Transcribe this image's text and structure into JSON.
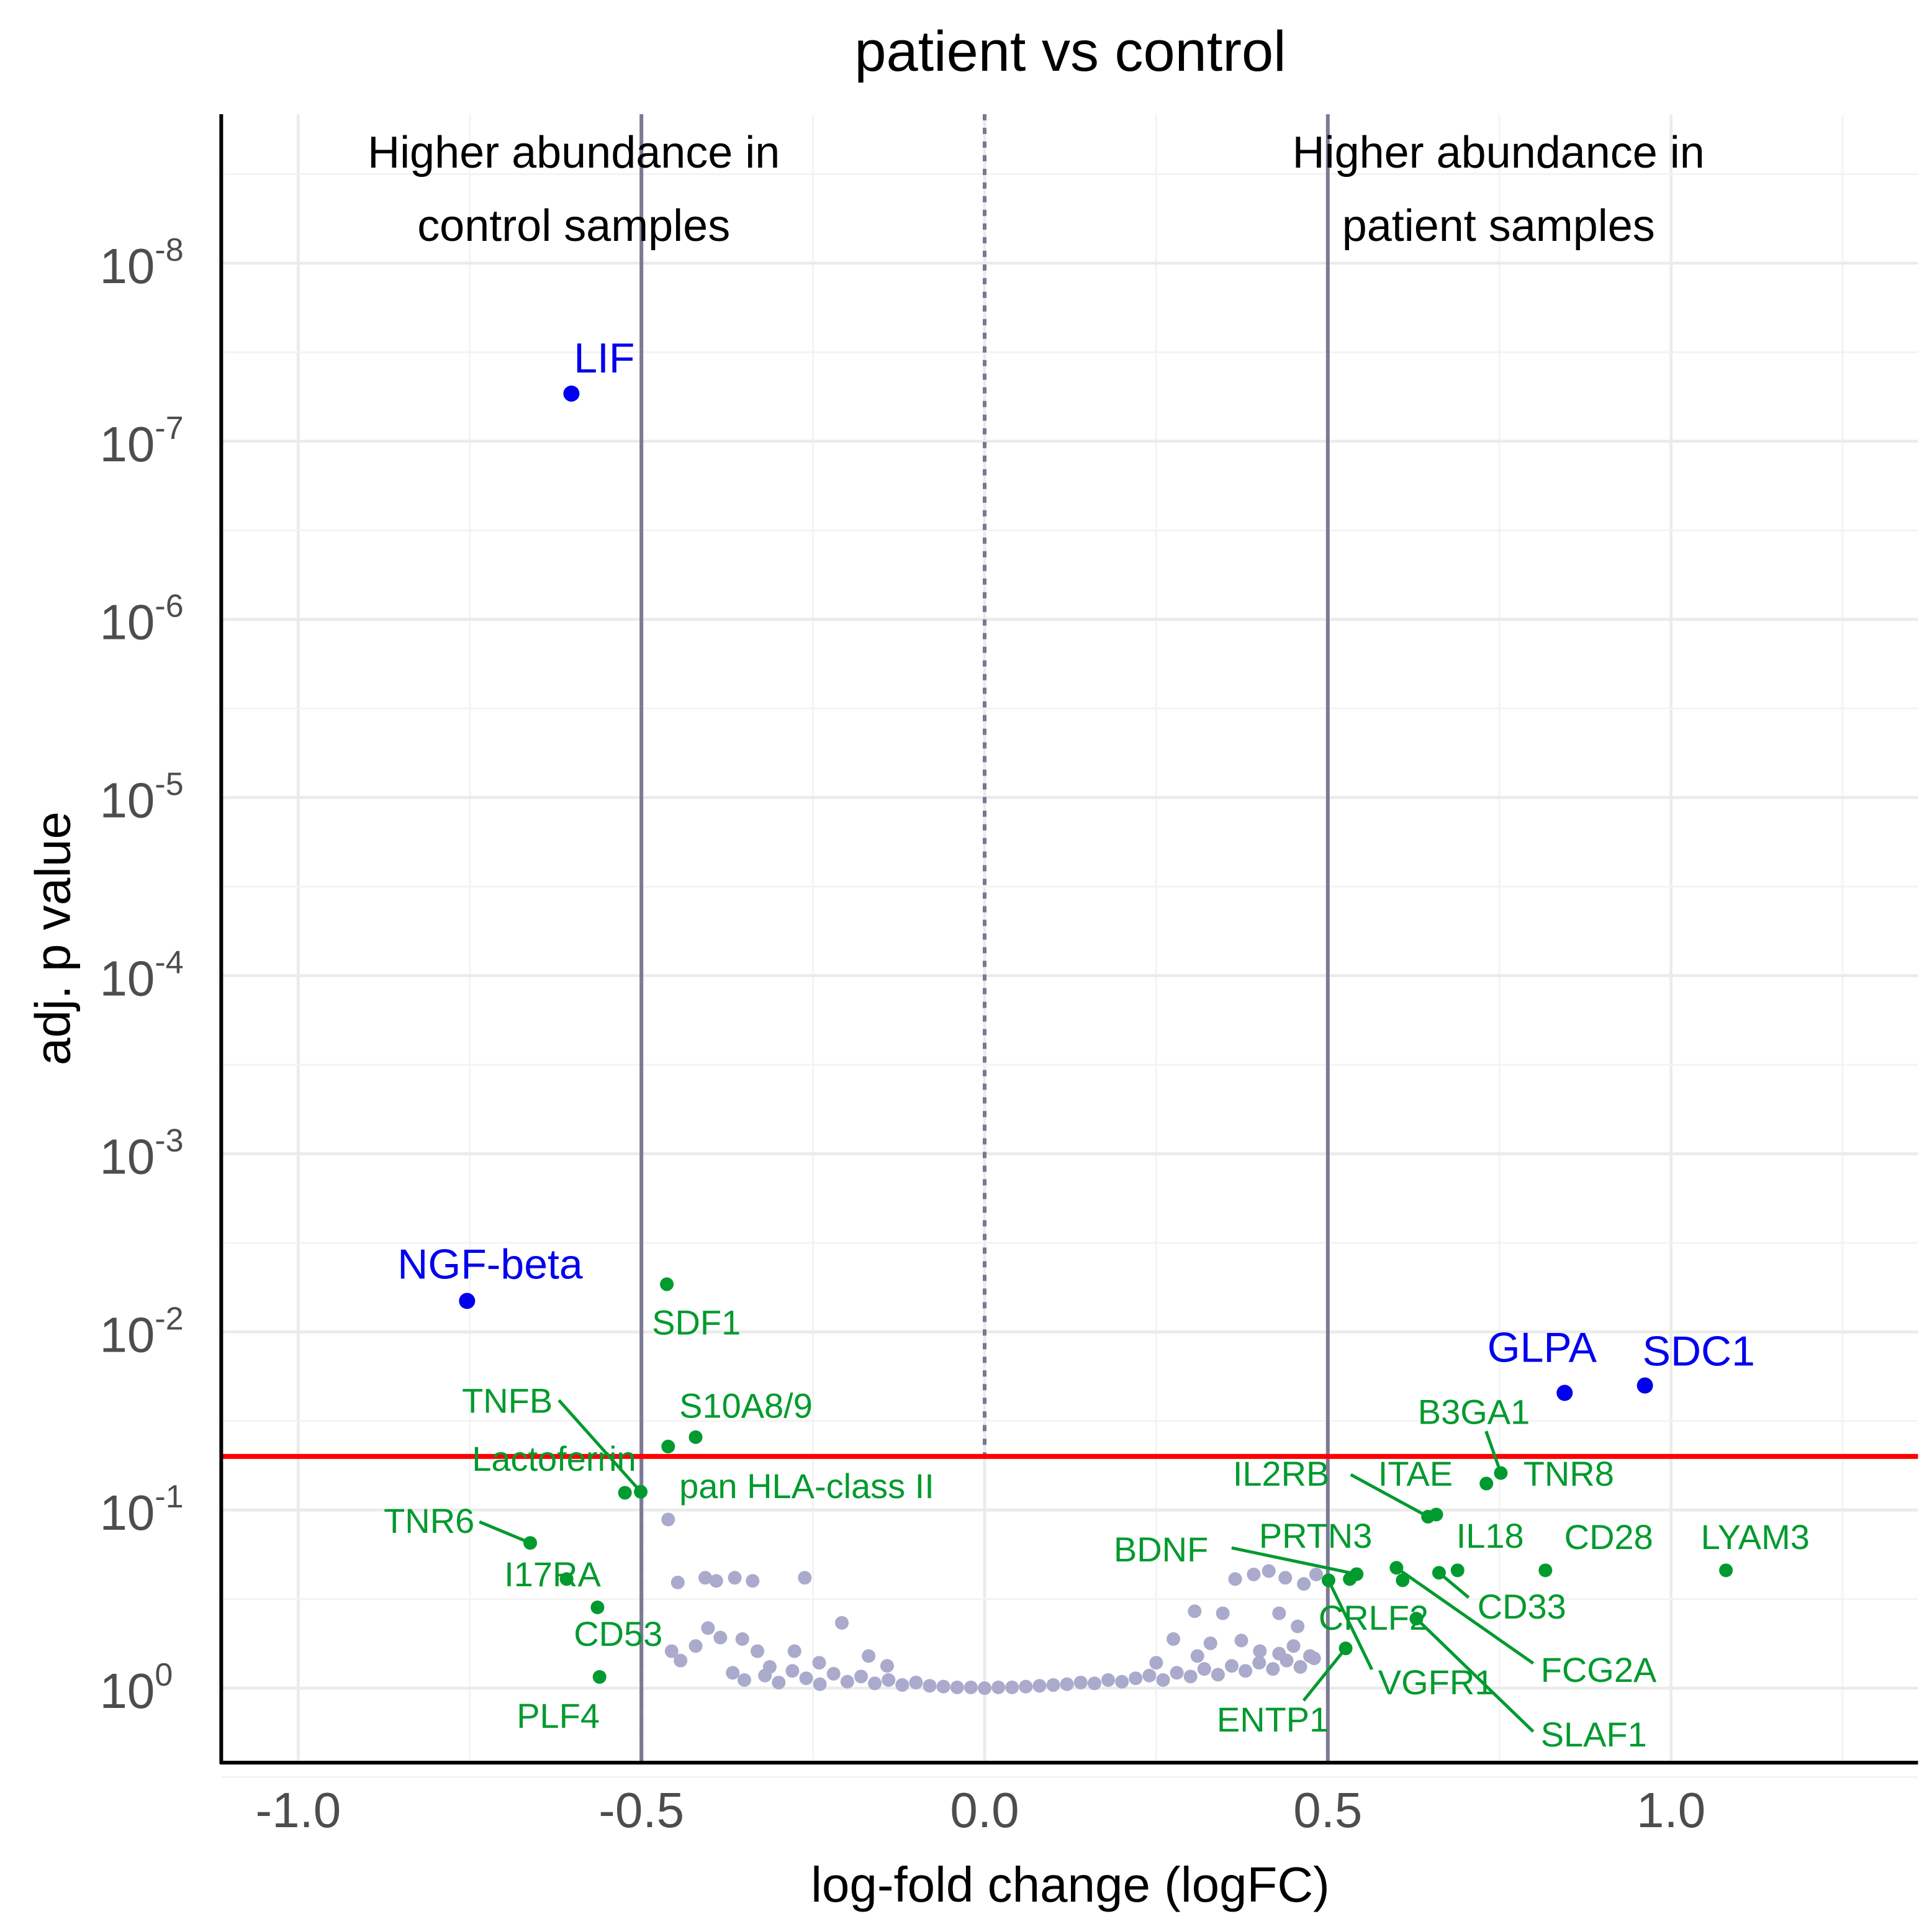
{
  "chart_data": {
    "type": "scatter",
    "title": "patient vs control",
    "xlabel": "log-fold change (logFC)",
    "ylabel": "adj. p value",
    "xlim": [
      -1.11,
      1.36
    ],
    "ylim_log10": [
      0.42,
      -8.84
    ],
    "y_scale": "log10-reversed",
    "x_ticks": [
      -1.0,
      -0.5,
      0.0,
      0.5,
      1.0
    ],
    "x_tick_labels": [
      "-1.0",
      "-0.5",
      "0.0",
      "0.5",
      "1.0"
    ],
    "y_tick_exponents": [
      "0",
      "-1",
      "-2",
      "-3",
      "-4",
      "-5",
      "-6",
      "-7",
      "-8"
    ],
    "y_tick_base": "10",
    "grid": true,
    "fc_threshold": 0.5,
    "p_threshold": 0.05,
    "annotations": {
      "left_line1": "Higher abundance in",
      "left_line2": "control samples",
      "right_line1": "Higher abundance in",
      "right_line2": "patient samples"
    },
    "colors": {
      "highlight": "#0000ee",
      "significant": "#009a2e",
      "other": "#aaaacc",
      "threshold": "#ff0000",
      "fc_lines": "#7a7a96"
    },
    "highlighted": [
      {
        "name": "LIF",
        "x": -0.602,
        "p": 5.4e-08
      },
      {
        "name": "NGF-beta",
        "x": -0.754,
        "p": 0.0067
      },
      {
        "name": "GLPA",
        "x": 0.845,
        "p": 0.022
      },
      {
        "name": "SDC1",
        "x": 0.962,
        "p": 0.02
      }
    ],
    "significant": [
      {
        "name": "SDF1",
        "x": -0.463,
        "p": 0.0054
      },
      {
        "name": "S10A8/9",
        "x": -0.421,
        "p": 0.039
      },
      {
        "name": "Lactoferrin",
        "x": -0.461,
        "p": 0.044
      },
      {
        "name": "TNFB",
        "x": -0.501,
        "p": 0.079
      },
      {
        "name": "pan HLA-class II",
        "x": -0.524,
        "p": 0.08
      },
      {
        "name": "TNR6",
        "x": -0.662,
        "p": 0.153
      },
      {
        "name": "I17RA",
        "x": -0.609,
        "p": 0.244
      },
      {
        "name": "CD53",
        "x": -0.564,
        "p": 0.352
      },
      {
        "name": "PLF4",
        "x": -0.561,
        "p": 0.865
      },
      {
        "name": "B3GA1",
        "x": 0.752,
        "p": 0.062
      },
      {
        "name": "TNR8",
        "x": 0.731,
        "p": 0.071
      },
      {
        "name": "IL2RB",
        "x": 0.646,
        "p": 0.109
      },
      {
        "name": "ITAE",
        "x": 0.658,
        "p": 0.106
      },
      {
        "name": "IL18",
        "x": 0.689,
        "p": 0.218
      },
      {
        "name": "CD33",
        "x": 0.662,
        "p": 0.225
      },
      {
        "name": "CD28",
        "x": 0.817,
        "p": 0.218
      },
      {
        "name": "LYAM3",
        "x": 1.08,
        "p": 0.218
      },
      {
        "name": "FCG2A",
        "x": 0.6,
        "p": 0.211
      },
      {
        "name": "BDNF",
        "x": 0.542,
        "p": 0.229
      },
      {
        "name": "PRTN3",
        "x": 0.532,
        "p": 0.244
      },
      {
        "name": "VGFR1",
        "x": 0.501,
        "p": 0.248
      },
      {
        "name": "CRLF2",
        "x": 0.609,
        "p": 0.248
      },
      {
        "name": "SLAF1",
        "x": 0.629,
        "p": 0.407
      },
      {
        "name": "ENTP1",
        "x": 0.526,
        "p": 0.598
      }
    ],
    "other_points": [
      [
        -0.461,
        0.113
      ],
      [
        -0.447,
        0.255
      ],
      [
        -0.407,
        0.24
      ],
      [
        -0.391,
        0.25
      ],
      [
        -0.364,
        0.24
      ],
      [
        -0.338,
        0.25
      ],
      [
        -0.262,
        0.24
      ],
      [
        -0.403,
        0.46
      ],
      [
        -0.353,
        0.53
      ],
      [
        -0.208,
        0.43
      ],
      [
        -0.456,
        0.62
      ],
      [
        -0.443,
        0.7
      ],
      [
        -0.421,
        0.58
      ],
      [
        -0.385,
        0.52
      ],
      [
        -0.331,
        0.62
      ],
      [
        -0.277,
        0.62
      ],
      [
        -0.241,
        0.72
      ],
      [
        -0.367,
        0.82
      ],
      [
        -0.313,
        0.76
      ],
      [
        -0.169,
        0.66
      ],
      [
        -0.142,
        0.75
      ],
      [
        -0.35,
        0.9
      ],
      [
        -0.32,
        0.85
      ],
      [
        -0.3,
        0.93
      ],
      [
        -0.28,
        0.8
      ],
      [
        -0.26,
        0.88
      ],
      [
        -0.24,
        0.95
      ],
      [
        -0.22,
        0.83
      ],
      [
        -0.2,
        0.92
      ],
      [
        -0.18,
        0.86
      ],
      [
        -0.16,
        0.94
      ],
      [
        -0.14,
        0.9
      ],
      [
        -0.12,
        0.96
      ],
      [
        -0.1,
        0.93
      ],
      [
        -0.08,
        0.97
      ],
      [
        -0.06,
        0.98
      ],
      [
        -0.04,
        0.99
      ],
      [
        -0.02,
        0.99
      ],
      [
        0.0,
        1.0
      ],
      [
        0.02,
        0.99
      ],
      [
        0.04,
        0.99
      ],
      [
        0.06,
        0.98
      ],
      [
        0.08,
        0.97
      ],
      [
        0.1,
        0.96
      ],
      [
        0.12,
        0.95
      ],
      [
        0.14,
        0.93
      ],
      [
        0.16,
        0.94
      ],
      [
        0.18,
        0.9
      ],
      [
        0.2,
        0.92
      ],
      [
        0.22,
        0.88
      ],
      [
        0.24,
        0.85
      ],
      [
        0.26,
        0.9
      ],
      [
        0.28,
        0.82
      ],
      [
        0.3,
        0.86
      ],
      [
        0.32,
        0.78
      ],
      [
        0.34,
        0.84
      ],
      [
        0.36,
        0.75
      ],
      [
        0.38,
        0.8
      ],
      [
        0.4,
        0.72
      ],
      [
        0.42,
        0.78
      ],
      [
        0.44,
        0.7
      ],
      [
        0.46,
        0.76
      ],
      [
        0.48,
        0.68
      ],
      [
        0.365,
        0.244
      ],
      [
        0.392,
        0.23
      ],
      [
        0.414,
        0.22
      ],
      [
        0.438,
        0.24
      ],
      [
        0.465,
        0.26
      ],
      [
        0.483,
        0.23
      ],
      [
        0.306,
        0.37
      ],
      [
        0.347,
        0.38
      ],
      [
        0.429,
        0.38
      ],
      [
        0.456,
        0.45
      ],
      [
        0.275,
        0.53
      ],
      [
        0.329,
        0.56
      ],
      [
        0.374,
        0.54
      ],
      [
        0.401,
        0.62
      ],
      [
        0.429,
        0.64
      ],
      [
        0.474,
        0.66
      ],
      [
        0.25,
        0.72
      ],
      [
        0.31,
        0.66
      ],
      [
        0.45,
        0.58
      ]
    ]
  }
}
